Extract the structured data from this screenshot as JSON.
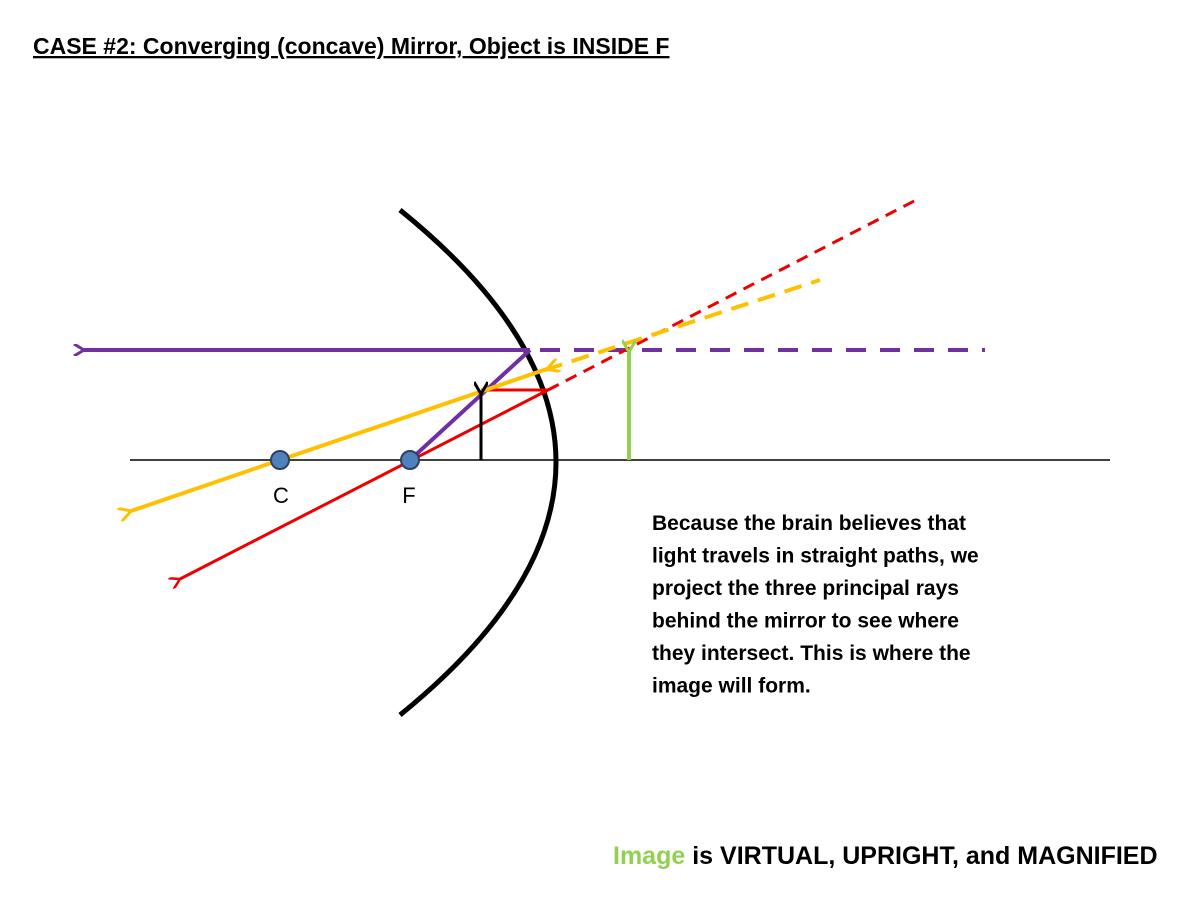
{
  "title": "CASE #2: Converging (concave) Mirror, Object is INSIDE F",
  "points": {
    "center": "C",
    "focus": "F"
  },
  "explanation": [
    "Because the brain believes that",
    "light travels in straight paths, we",
    "project the three principal rays",
    "behind the mirror to see where",
    "they intersect.  This is where the",
    "image will form."
  ],
  "conclusion": {
    "highlight": "Image",
    "text": "is VIRTUAL, UPRIGHT, and MAGNIFIED"
  }
}
